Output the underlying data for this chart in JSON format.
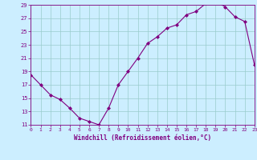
{
  "x": [
    0,
    1,
    2,
    3,
    4,
    5,
    6,
    7,
    8,
    9,
    10,
    11,
    12,
    13,
    14,
    15,
    16,
    17,
    18,
    19,
    20,
    21,
    22,
    23
  ],
  "y": [
    18.5,
    17.0,
    15.5,
    14.8,
    13.5,
    12.0,
    11.5,
    11.0,
    13.5,
    17.0,
    19.0,
    21.0,
    23.2,
    24.2,
    25.5,
    26.0,
    27.5,
    28.0,
    29.2,
    29.5,
    28.7,
    27.2,
    26.5,
    20.0
  ],
  "xlim": [
    0,
    23
  ],
  "ylim": [
    11,
    29
  ],
  "xticks": [
    0,
    1,
    2,
    3,
    4,
    5,
    6,
    7,
    8,
    9,
    10,
    11,
    12,
    13,
    14,
    15,
    16,
    17,
    18,
    19,
    20,
    21,
    22,
    23
  ],
  "yticks": [
    11,
    13,
    15,
    17,
    19,
    21,
    23,
    25,
    27,
    29
  ],
  "xlabel": "Windchill (Refroidissement éolien,°C)",
  "line_color": "#800080",
  "marker_color": "#800080",
  "bg_color": "#cceeff",
  "grid_color": "#99cccc",
  "spine_color": "#800080"
}
